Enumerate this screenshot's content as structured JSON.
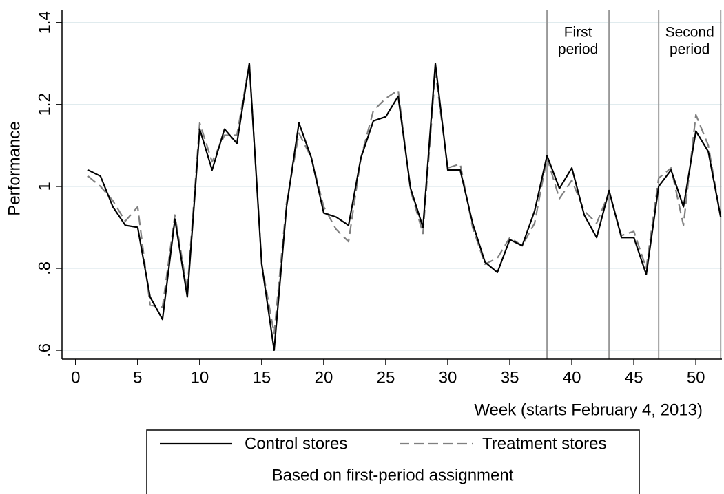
{
  "chart_data": {
    "type": "line",
    "x_label": "Week (starts February 4, 2013)",
    "y_label": "Performance",
    "x": [
      1,
      2,
      3,
      4,
      5,
      6,
      7,
      8,
      9,
      10,
      11,
      12,
      13,
      14,
      15,
      16,
      17,
      18,
      19,
      20,
      21,
      22,
      23,
      24,
      25,
      26,
      27,
      28,
      29,
      30,
      31,
      32,
      33,
      34,
      35,
      36,
      37,
      38,
      39,
      40,
      41,
      42,
      43,
      44,
      45,
      46,
      47,
      48,
      49,
      50,
      51,
      52
    ],
    "series": [
      {
        "name": "Control stores",
        "color": "#000000",
        "dash": false,
        "values": [
          1.04,
          1.025,
          0.95,
          0.905,
          0.9,
          0.73,
          0.675,
          0.92,
          0.73,
          1.14,
          1.04,
          1.14,
          1.105,
          1.3,
          0.81,
          0.6,
          0.95,
          1.155,
          1.07,
          0.935,
          0.925,
          0.905,
          1.07,
          1.16,
          1.17,
          1.22,
          0.995,
          0.9,
          1.3,
          1.04,
          1.04,
          0.91,
          0.815,
          0.79,
          0.87,
          0.855,
          0.94,
          1.075,
          0.995,
          1.045,
          0.93,
          0.875,
          0.99,
          0.875,
          0.875,
          0.785,
          1.0,
          1.04,
          0.95,
          1.135,
          1.085,
          0.925
        ]
      },
      {
        "name": "Treatment stores",
        "color": "#808080",
        "dash": true,
        "values": [
          1.025,
          1.0,
          0.965,
          0.915,
          0.95,
          0.71,
          0.705,
          0.93,
          0.745,
          1.155,
          1.06,
          1.125,
          1.125,
          1.3,
          0.81,
          0.64,
          0.96,
          1.13,
          1.07,
          0.95,
          0.895,
          0.865,
          1.07,
          1.185,
          1.215,
          1.235,
          0.99,
          0.885,
          1.28,
          1.045,
          1.055,
          0.9,
          0.81,
          0.825,
          0.875,
          0.855,
          0.91,
          1.07,
          0.97,
          1.015,
          0.94,
          0.91,
          0.985,
          0.88,
          0.89,
          0.8,
          1.02,
          1.045,
          0.905,
          1.175,
          1.1,
          0.925
        ]
      }
    ],
    "legend_note": "Based on first-period assignment",
    "vlines": [
      38,
      43,
      47,
      52
    ],
    "annotations": [
      [
        "First",
        "period"
      ],
      [
        "Second",
        "period"
      ]
    ],
    "xlim": [
      -1.1,
      52.1
    ],
    "ylim": [
      0.578,
      1.43
    ],
    "xticks": [
      0,
      5,
      10,
      15,
      20,
      25,
      30,
      35,
      40,
      45,
      50
    ],
    "yticks": [
      {
        "value": 0.6,
        "label": ".6"
      },
      {
        "value": 0.8,
        "label": ".8"
      },
      1,
      1.2,
      1.4
    ],
    "grid": true,
    "grid_color": "#dce8ec"
  }
}
